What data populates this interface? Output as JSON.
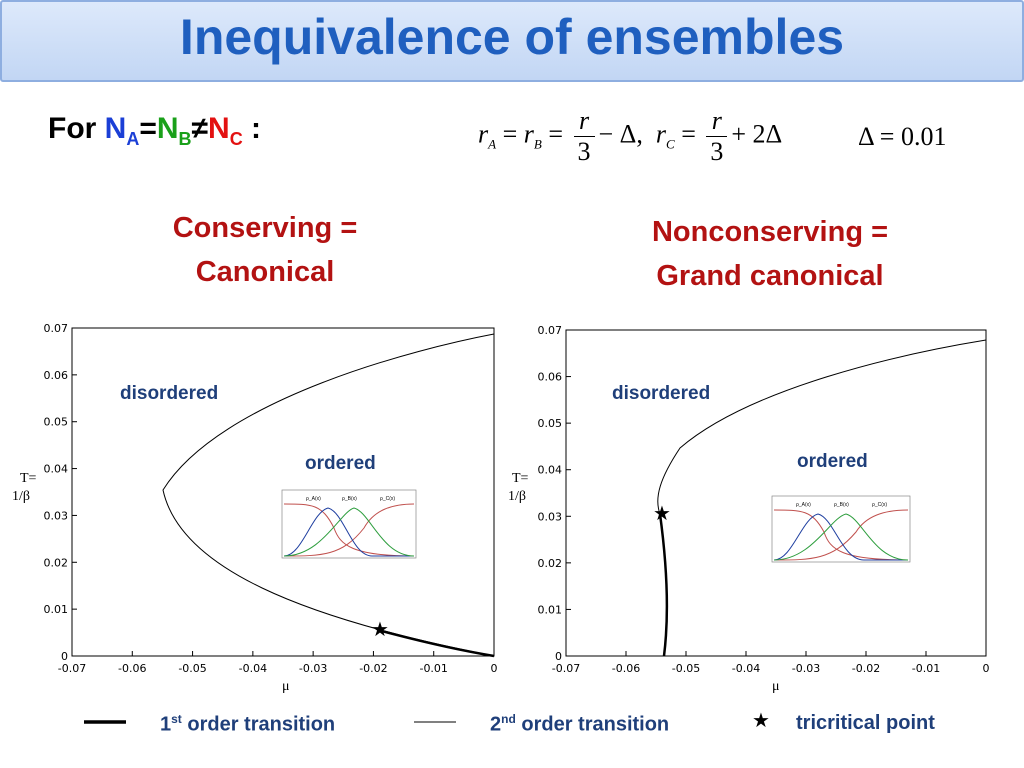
{
  "slide": {
    "title": "Inequivalence of ensembles"
  },
  "condition": {
    "prefix": "For ",
    "na": "N",
    "na_sub": "A",
    "eq": "=",
    "nb": "N",
    "nb_sub": "B",
    "neq": "≠",
    "nc": "N",
    "nc_sub": "C",
    "suffix": " :"
  },
  "equation": {
    "rA": "r",
    "rA_sub": "A",
    "eq1": "=",
    "rB": "r",
    "rB_sub": "B",
    "eq2": "=",
    "frac1_num": "r",
    "frac1_den": "3",
    "tail1": "− Δ,",
    "rC": "r",
    "rC_sub": "C",
    "eq3": "=",
    "frac2_num": "r",
    "frac2_den": "3",
    "tail2": "+ 2Δ",
    "delta": "Δ = 0.01"
  },
  "left_heading": {
    "line1": "Conserving  =",
    "line2": "Canonical"
  },
  "right_heading": {
    "line1": "Nonconserving =",
    "line2": "Grand canonical"
  },
  "plots": [
    {
      "region1": "disordered",
      "region2": "ordered",
      "ylabel1": "T=",
      "ylabel2": "1/β",
      "xlabel": "μ",
      "yticks": [
        "0.07",
        "0.06",
        "0.05",
        "0.04",
        "0.03",
        "0.02",
        "0.01",
        "0"
      ],
      "xticks": [
        "-0.07",
        "-0.06",
        "-0.05",
        "-0.04",
        "-0.03",
        "-0.02",
        "-0.01",
        "0"
      ]
    },
    {
      "region1": "disordered",
      "region2": "ordered",
      "ylabel1": "T=",
      "ylabel2": "1/β",
      "xlabel": "μ",
      "yticks": [
        "0.07",
        "0.06",
        "0.05",
        "0.04",
        "0.03",
        "0.02",
        "0.01",
        "0"
      ],
      "xticks": [
        "-0.07",
        "-0.06",
        "-0.05",
        "-0.04",
        "-0.03",
        "-0.02",
        "-0.01",
        "0"
      ]
    }
  ],
  "legend": {
    "first_pre": "1",
    "first_sup": "st",
    "first_post": " order transition",
    "second_pre": "2",
    "second_sup": "nd",
    "second_post": " order transition",
    "star": "★",
    "tricritical": "tricritical point"
  }
}
